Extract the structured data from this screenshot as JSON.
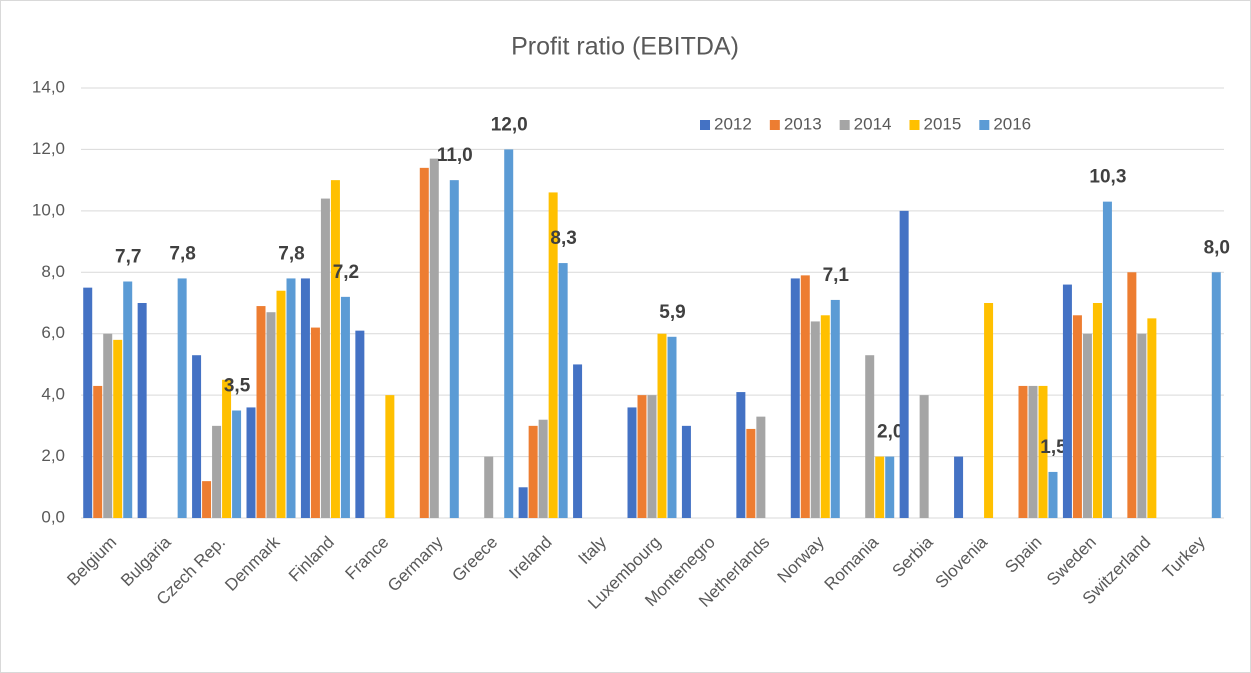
{
  "chart_data": {
    "type": "bar",
    "title": "Profit ratio (EBITDA)",
    "categories": [
      "Belgium",
      "Bulgaria",
      "Czech Rep.",
      "Denmark",
      "Finland",
      "France",
      "Germany",
      "Greece",
      "Ireland",
      "Italy",
      "Luxembourg",
      "Montenegro",
      "Netherlands",
      "Norway",
      "Romania",
      "Serbia",
      "Slovenia",
      "Spain",
      "Sweden",
      "Switzerland",
      "Turkey"
    ],
    "series": [
      {
        "name": "2012",
        "color": "#4472c4",
        "values": [
          7.5,
          7.0,
          5.3,
          3.6,
          7.8,
          6.1,
          null,
          null,
          1.0,
          5.0,
          3.6,
          3.0,
          4.1,
          7.8,
          null,
          10.0,
          2.0,
          null,
          7.6,
          null,
          null
        ]
      },
      {
        "name": "2013",
        "color": "#ed7d31",
        "values": [
          4.3,
          null,
          1.2,
          6.9,
          6.2,
          null,
          11.4,
          null,
          3.0,
          null,
          4.0,
          null,
          2.9,
          7.9,
          null,
          null,
          null,
          4.3,
          6.6,
          8.0,
          null
        ]
      },
      {
        "name": "2014",
        "color": "#a5a5a5",
        "values": [
          6.0,
          null,
          3.0,
          6.7,
          10.4,
          null,
          11.7,
          2.0,
          3.2,
          null,
          4.0,
          null,
          3.3,
          6.4,
          5.3,
          4.0,
          null,
          4.3,
          6.0,
          6.0,
          null
        ]
      },
      {
        "name": "2015",
        "color": "#ffc000",
        "values": [
          5.8,
          null,
          4.5,
          7.4,
          11.0,
          4.0,
          null,
          null,
          10.6,
          null,
          6.0,
          null,
          null,
          6.6,
          2.0,
          null,
          7.0,
          4.3,
          7.0,
          6.5,
          null
        ]
      },
      {
        "name": "2016",
        "color": "#5b9bd5",
        "values": [
          7.7,
          7.8,
          3.5,
          7.8,
          7.2,
          null,
          11.0,
          12.0,
          8.3,
          null,
          5.9,
          null,
          null,
          7.1,
          2.0,
          null,
          null,
          1.5,
          10.3,
          null,
          8.0
        ],
        "value_labels": [
          "7,7",
          "7,8",
          "3,5",
          "7,8",
          "7,2",
          null,
          "11,0",
          "12,0",
          "8,3",
          null,
          "5,9",
          null,
          null,
          "7,1",
          "2,0",
          null,
          null,
          "1,5",
          "10,3",
          null,
          "8,0"
        ]
      }
    ],
    "ylim": [
      0,
      14
    ],
    "yticks": [
      {
        "value": 0,
        "label": "0,0"
      },
      {
        "value": 2,
        "label": "2,0"
      },
      {
        "value": 4,
        "label": "4,0"
      },
      {
        "value": 6,
        "label": "6,0"
      },
      {
        "value": 8,
        "label": "8,0"
      },
      {
        "value": 10,
        "label": "10,0"
      },
      {
        "value": 12,
        "label": "12,0"
      },
      {
        "value": 14,
        "label": "14,0"
      }
    ],
    "grid": true,
    "legend": "top-right"
  }
}
